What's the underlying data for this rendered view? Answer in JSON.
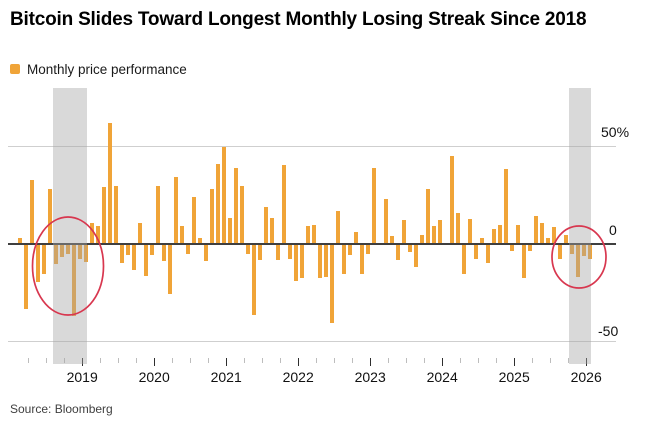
{
  "header": {
    "title": "Bitcoin Slides Toward Longest Monthly Losing Streak Since 2018"
  },
  "legend": {
    "label": "Monthly price performance",
    "swatch_color": "#F0A438"
  },
  "source": {
    "text": "Source: Bloomberg"
  },
  "chart_data": {
    "type": "bar",
    "title": "Bitcoin Slides Toward Longest Monthly Losing Streak Since 2018",
    "series_name": "Monthly price performance",
    "unit": "percent",
    "bar_color": "#F0A438",
    "highlight_band_color": "rgba(164,164,164,0.42)",
    "circle_color": "#D8374F",
    "ylim": [
      -55,
      70
    ],
    "grid": "horizontal",
    "legend_position": "top-left",
    "yticks": [
      {
        "label": "50%",
        "value": 50
      },
      {
        "label": "0",
        "value": 0
      },
      {
        "label": "-50",
        "value": -50
      }
    ],
    "xticks_years": [
      "2019",
      "2020",
      "2021",
      "2022",
      "2023",
      "2024",
      "2025",
      "2026"
    ],
    "values": [
      [
        "2018-02",
        3
      ],
      [
        "2018-03",
        -33
      ],
      [
        "2018-04",
        33
      ],
      [
        "2018-05",
        -19
      ],
      [
        "2018-06",
        -15
      ],
      [
        "2018-07",
        28
      ],
      [
        "2018-08",
        -9.5
      ],
      [
        "2018-09",
        -6
      ],
      [
        "2018-10",
        -4.5
      ],
      [
        "2018-11",
        -36.5
      ],
      [
        "2018-12",
        -7
      ],
      [
        "2019-01",
        -8.5
      ],
      [
        "2019-02",
        11
      ],
      [
        "2019-03",
        9
      ],
      [
        "2019-04",
        29
      ],
      [
        "2019-05",
        62
      ],
      [
        "2019-06",
        30
      ],
      [
        "2019-07",
        -9
      ],
      [
        "2019-08",
        -5
      ],
      [
        "2019-09",
        -13
      ],
      [
        "2019-10",
        11
      ],
      [
        "2019-11",
        -16
      ],
      [
        "2019-12",
        -5
      ],
      [
        "2020-01",
        30
      ],
      [
        "2020-02",
        -8
      ],
      [
        "2020-03",
        -25
      ],
      [
        "2020-04",
        34.5
      ],
      [
        "2020-05",
        9
      ],
      [
        "2020-06",
        -4.5
      ],
      [
        "2020-07",
        24
      ],
      [
        "2020-08",
        3
      ],
      [
        "2020-09",
        -8
      ],
      [
        "2020-10",
        28
      ],
      [
        "2020-11",
        41
      ],
      [
        "2020-12",
        50
      ],
      [
        "2021-01",
        13.5
      ],
      [
        "2021-02",
        39
      ],
      [
        "2021-03",
        30
      ],
      [
        "2021-04",
        -4.5
      ],
      [
        "2021-05",
        -36
      ],
      [
        "2021-06",
        -7.5
      ],
      [
        "2021-07",
        19
      ],
      [
        "2021-08",
        13.5
      ],
      [
        "2021-09",
        -7.5
      ],
      [
        "2021-10",
        40.5
      ],
      [
        "2021-11",
        -7
      ],
      [
        "2021-12",
        -18.5
      ],
      [
        "2022-01",
        -17
      ],
      [
        "2022-02",
        9
      ],
      [
        "2022-03",
        10
      ],
      [
        "2022-04",
        -17
      ],
      [
        "2022-05",
        -16.5
      ],
      [
        "2022-06",
        -40
      ],
      [
        "2022-07",
        17
      ],
      [
        "2022-08",
        -15
      ],
      [
        "2022-09",
        -5
      ],
      [
        "2022-10",
        6
      ],
      [
        "2022-11",
        -15
      ],
      [
        "2022-12",
        -4.5
      ],
      [
        "2023-01",
        39
      ],
      [
        "2023-02",
        0.5
      ],
      [
        "2023-03",
        23
      ],
      [
        "2023-04",
        4
      ],
      [
        "2023-05",
        -7.5
      ],
      [
        "2023-06",
        12.5
      ],
      [
        "2023-07",
        -3.5
      ],
      [
        "2023-08",
        -11.5
      ],
      [
        "2023-09",
        4.5
      ],
      [
        "2023-10",
        28
      ],
      [
        "2023-11",
        9
      ],
      [
        "2023-12",
        12.5
      ],
      [
        "2024-01",
        0.7
      ],
      [
        "2024-02",
        45
      ],
      [
        "2024-03",
        16
      ],
      [
        "2024-04",
        -15
      ],
      [
        "2024-05",
        13
      ],
      [
        "2024-06",
        -7
      ],
      [
        "2024-07",
        3
      ],
      [
        "2024-08",
        -9
      ],
      [
        "2024-09",
        7.5
      ],
      [
        "2024-10",
        10
      ],
      [
        "2024-11",
        38.5
      ],
      [
        "2024-12",
        -3
      ],
      [
        "2025-01",
        10
      ],
      [
        "2025-02",
        -17
      ],
      [
        "2025-03",
        -3
      ],
      [
        "2025-04",
        14.5
      ],
      [
        "2025-05",
        11
      ],
      [
        "2025-06",
        3
      ],
      [
        "2025-07",
        8.5
      ],
      [
        "2025-08",
        -7
      ],
      [
        "2025-09",
        4.5
      ],
      [
        "2025-10",
        -4.5
      ],
      [
        "2025-11",
        -16.5
      ],
      [
        "2025-12",
        -5.5
      ],
      [
        "2026-01",
        -7
      ]
    ],
    "annotations": {
      "shaded_periods": [
        {
          "from": "2018-08",
          "to": "2019-01",
          "meaning": "2018 losing streak"
        },
        {
          "from": "2025-10",
          "to": "2026-01",
          "meaning": "current losing streak"
        }
      ],
      "circled_periods": [
        {
          "from": "2018-08",
          "to": "2019-01"
        },
        {
          "from": "2025-10",
          "to": "2026-01"
        }
      ]
    }
  }
}
